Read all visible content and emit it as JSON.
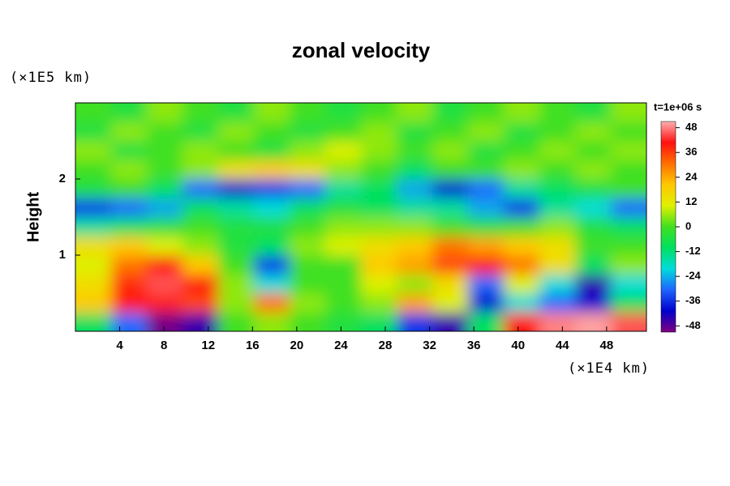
{
  "chart_data": {
    "type": "heatmap",
    "title": "zonal velocity",
    "x_unit": "(×1E4 km)",
    "y_label": "Height",
    "y_unit": "(×1E5 km)",
    "colorbar_title": "t=1e+06 s",
    "xlim": [
      0,
      51.6
    ],
    "xticks": [
      4,
      8,
      12,
      16,
      20,
      24,
      28,
      32,
      36,
      40,
      44,
      48
    ],
    "ylim": [
      0,
      3
    ],
    "yticks": [
      1,
      2
    ],
    "clim": [
      -51,
      51
    ],
    "cticks": [
      -48,
      -36,
      -24,
      -12,
      0,
      12,
      24,
      36,
      48
    ],
    "colormap": [
      "#800080",
      "#0000cc",
      "#1e64ff",
      "#00dcdc",
      "#00e060",
      "#40e020",
      "#e0f000",
      "#ffc800",
      "#ff7000",
      "#ff1010",
      "#ffb0b0"
    ],
    "z": [
      [
        -10,
        -30,
        -50,
        -45,
        0,
        5,
        0,
        -5,
        -10,
        -35,
        -45,
        -10,
        40,
        48,
        50,
        45
      ],
      [
        20,
        40,
        42,
        35,
        5,
        30,
        5,
        0,
        5,
        25,
        10,
        -40,
        -20,
        -30,
        -40,
        -10
      ],
      [
        15,
        38,
        45,
        40,
        5,
        -20,
        0,
        0,
        10,
        5,
        15,
        -30,
        10,
        -20,
        -45,
        -20
      ],
      [
        10,
        30,
        40,
        20,
        0,
        -35,
        0,
        0,
        20,
        25,
        35,
        40,
        30,
        15,
        -10,
        5
      ],
      [
        15,
        20,
        10,
        5,
        -5,
        -10,
        5,
        10,
        15,
        20,
        30,
        25,
        20,
        15,
        0,
        0
      ],
      [
        -15,
        -10,
        -5,
        0,
        -5,
        -5,
        0,
        5,
        5,
        5,
        0,
        -5,
        0,
        5,
        -5,
        -10
      ],
      [
        -35,
        -30,
        -25,
        -10,
        -15,
        -20,
        -10,
        -5,
        -10,
        -15,
        -15,
        -25,
        -35,
        -15,
        -20,
        -30
      ],
      [
        -5,
        0,
        -10,
        -30,
        -40,
        -35,
        -30,
        -15,
        -10,
        -25,
        -40,
        -30,
        -15,
        -10,
        -5,
        0
      ],
      [
        0,
        5,
        0,
        5,
        15,
        20,
        15,
        5,
        0,
        -10,
        0,
        0,
        5,
        0,
        5,
        0
      ],
      [
        5,
        -5,
        0,
        5,
        0,
        -5,
        5,
        10,
        5,
        0,
        5,
        -5,
        0,
        5,
        0,
        5
      ],
      [
        -5,
        5,
        0,
        -5,
        5,
        0,
        -5,
        0,
        5,
        -5,
        0,
        5,
        -5,
        0,
        5,
        0
      ],
      [
        0,
        -5,
        5,
        0,
        -5,
        5,
        0,
        -5,
        0,
        5,
        -5,
        0,
        5,
        0,
        -5,
        5
      ]
    ]
  }
}
